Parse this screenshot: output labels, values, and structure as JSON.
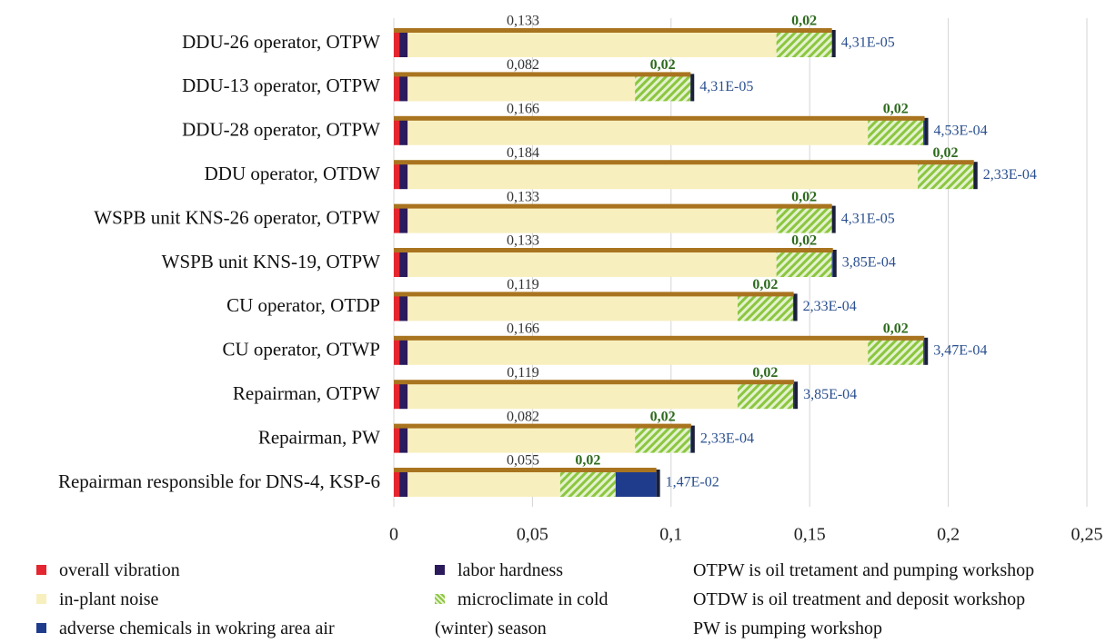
{
  "chart_data": {
    "type": "stacked-barh",
    "categories": [
      "DDU-26 operator, OTPW",
      "DDU-13 operator, OTPW",
      "DDU-28 operator, OTPW",
      "DDU operator, OTDW",
      "WSPB unit KNS-26 operator, OTPW",
      "WSPB unit KNS-19, OTPW",
      "CU operator, OTDP",
      "CU operator, OTWP",
      "Repairman, OTPW",
      "Repairman, PW",
      "Repairman responsible for DNS-4, KSP-6"
    ],
    "series": [
      {
        "name": "overall vibration",
        "color": "#e3262f",
        "values": [
          0.002,
          0.002,
          0.002,
          0.002,
          0.002,
          0.002,
          0.002,
          0.002,
          0.002,
          0.002,
          0.002
        ]
      },
      {
        "name": "labor hardness",
        "color": "#2b1a5c",
        "values": [
          0.003,
          0.003,
          0.003,
          0.003,
          0.003,
          0.003,
          0.003,
          0.003,
          0.003,
          0.003,
          0.003
        ]
      },
      {
        "name": "in-plant noise",
        "color": "#f8efbf",
        "values": [
          0.133,
          0.082,
          0.166,
          0.184,
          0.133,
          0.133,
          0.119,
          0.166,
          0.119,
          0.082,
          0.055
        ],
        "value_labels": [
          "0,133",
          "0,082",
          "0,166",
          "0,184",
          "0,133",
          "0,133",
          "0,119",
          "0,166",
          "0,119",
          "0,082",
          "0,055"
        ]
      },
      {
        "name": "microclimate in cold (winter) season",
        "color": "#8cc63f",
        "hatched": true,
        "values": [
          0.02,
          0.02,
          0.02,
          0.02,
          0.02,
          0.02,
          0.02,
          0.02,
          0.02,
          0.02,
          0.02
        ],
        "value_labels": [
          "0,02",
          "0,02",
          "0,02",
          "0,02",
          "0,02",
          "0,02",
          "0,02",
          "0,02",
          "0,02",
          "0,02",
          "0,02"
        ]
      },
      {
        "name": "adverse chemicals in wokring area air",
        "color": "#1f3c8c",
        "values": [
          4.31e-05,
          4.31e-05,
          0.000453,
          0.000233,
          4.31e-05,
          0.000385,
          0.000233,
          0.000347,
          0.000385,
          0.000233,
          0.0147
        ],
        "value_labels": [
          "4,31E-05",
          "4,31E-05",
          "4,53E-04",
          "2,33E-04",
          "4,31E-05",
          "3,85E-04",
          "2,33E-04",
          "3,47E-04",
          "3,85E-04",
          "2,33E-04",
          "1,47E-02"
        ]
      }
    ],
    "xlim": [
      0,
      0.25
    ],
    "xticks": [
      0,
      {
        "value": 0.05,
        "label": "0,05"
      },
      {
        "value": 0.1,
        "label": "0,1"
      },
      {
        "value": 0.15,
        "label": "0,15"
      },
      {
        "value": 0.2,
        "label": "0,2"
      },
      {
        "value": 0.25,
        "label": "0,25"
      }
    ],
    "grid": true,
    "notes": [
      "OTPW is oil tretament and pumping workshop",
      "OTDW is oil treatment and deposit workshop",
      "PW is pumping workshop"
    ]
  }
}
